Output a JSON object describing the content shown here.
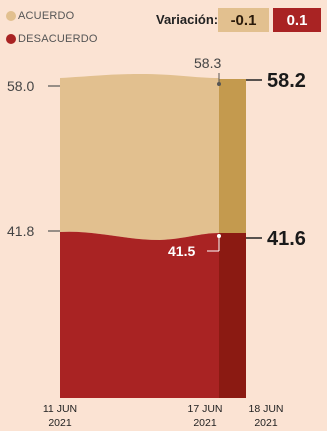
{
  "legend": [
    {
      "label": "ACUERDO",
      "color": "#e2c08f"
    },
    {
      "label": "DESACUERDO",
      "color": "#a92323"
    }
  ],
  "variation": {
    "label": "Variación:",
    "items": [
      {
        "value": "-0.1",
        "bg": "#e2c08f",
        "fg": "#2a1a0a"
      },
      {
        "value": "0.1",
        "bg": "#a92323",
        "fg": "#ffffff"
      }
    ]
  },
  "colors": {
    "acuerdo": "#e2c08f",
    "acuerdo_dark": "#c49a4e",
    "desacuerdo": "#a92323",
    "desacuerdo_dark": "#8b1a12"
  },
  "chart_data": {
    "type": "area",
    "x": [
      "11 JUN 2021",
      "17 JUN 2021",
      "18 JUN 2021"
    ],
    "series": [
      {
        "name": "ACUERDO",
        "values": [
          58.0,
          58.3,
          58.2
        ]
      },
      {
        "name": "DESACUERDO",
        "values": [
          41.8,
          41.5,
          41.6
        ]
      }
    ],
    "labels": {
      "start_acuerdo": "58.0",
      "start_desacuerdo": "41.8",
      "mid_acuerdo": "58.3",
      "mid_desacuerdo": "41.5",
      "end_acuerdo": "58.2",
      "end_desacuerdo": "41.6"
    },
    "dates": [
      {
        "line1": "11 JUN",
        "line2": "2021"
      },
      {
        "line1": "17 JUN",
        "line2": "2021"
      },
      {
        "line1": "18 JUN",
        "line2": "2021"
      }
    ]
  }
}
